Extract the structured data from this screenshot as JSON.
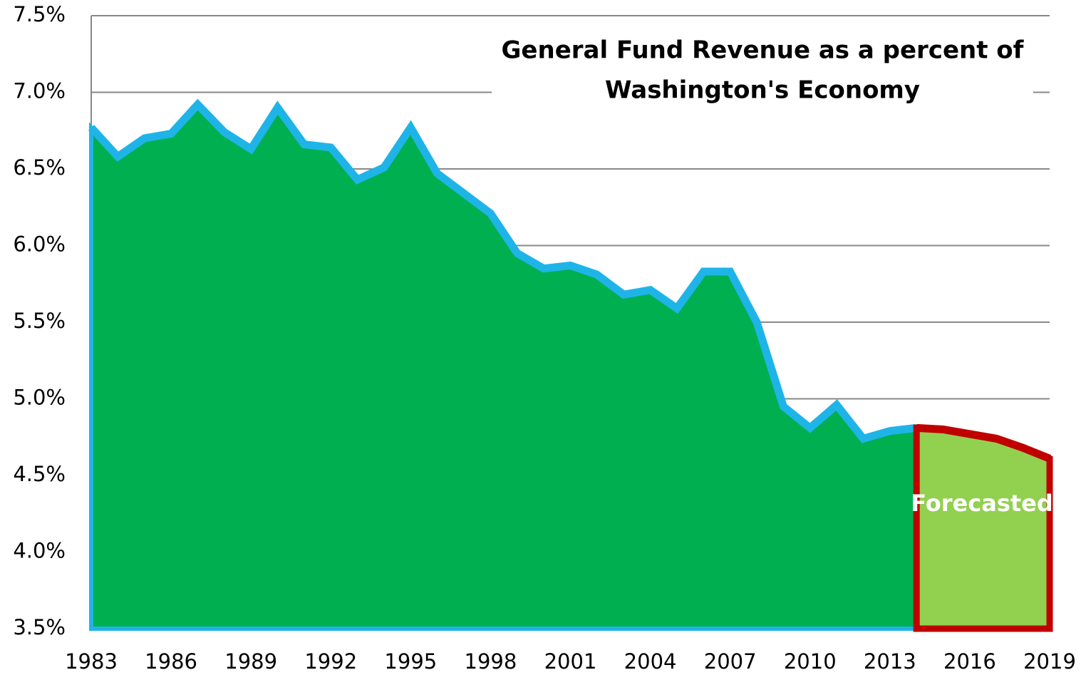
{
  "chart_data": {
    "type": "area",
    "title": [
      "General Fund Revenue as a percent of",
      "Washington's Economy"
    ],
    "annotation": "Forecasted",
    "x": [
      1983,
      1984,
      1985,
      1986,
      1987,
      1988,
      1989,
      1990,
      1991,
      1992,
      1993,
      1994,
      1995,
      1996,
      1997,
      1998,
      1999,
      2000,
      2001,
      2002,
      2003,
      2004,
      2005,
      2006,
      2007,
      2008,
      2009,
      2010,
      2011,
      2012,
      2013,
      2014,
      2015,
      2016,
      2017,
      2018,
      2019
    ],
    "series": [
      {
        "color": "#00b050",
        "line_color": "#1fb4e8",
        "values": [
          6.77,
          6.58,
          6.7,
          6.73,
          6.92,
          6.74,
          6.63,
          6.9,
          6.66,
          6.64,
          6.43,
          6.51,
          6.77,
          6.47,
          6.34,
          6.21,
          5.95,
          5.85,
          5.87,
          5.81,
          5.68,
          5.71,
          5.59,
          5.83,
          5.83,
          5.5,
          4.95,
          4.81,
          4.96,
          4.74,
          4.79,
          4.81,
          null,
          null,
          null,
          null,
          null
        ]
      },
      {
        "color": "#92d050",
        "line_color": "#c00000",
        "values": [
          null,
          null,
          null,
          null,
          null,
          null,
          null,
          null,
          null,
          null,
          null,
          null,
          null,
          null,
          null,
          null,
          null,
          null,
          null,
          null,
          null,
          null,
          null,
          null,
          null,
          null,
          null,
          null,
          null,
          null,
          null,
          4.81,
          4.8,
          4.77,
          4.74,
          4.68,
          4.61
        ]
      }
    ],
    "xlim": [
      1983,
      2019
    ],
    "xticks": [
      1983,
      1986,
      1989,
      1992,
      1995,
      1998,
      2001,
      2004,
      2007,
      2010,
      2013,
      2016,
      2019
    ],
    "ylim": [
      3.5,
      7.5
    ],
    "yticks": [
      {
        "value": 3.5,
        "label": "3.5%"
      },
      {
        "value": 4.0,
        "label": "4.0%"
      },
      {
        "value": 4.5,
        "label": "4.5%"
      },
      {
        "value": 5.0,
        "label": "5.0%"
      },
      {
        "value": 5.5,
        "label": "5.5%"
      },
      {
        "value": 6.0,
        "label": "6.0%"
      },
      {
        "value": 6.5,
        "label": "6.5%"
      },
      {
        "value": 7.0,
        "label": "7.0%"
      },
      {
        "value": 7.5,
        "label": "7.5%"
      }
    ],
    "grid": true
  }
}
